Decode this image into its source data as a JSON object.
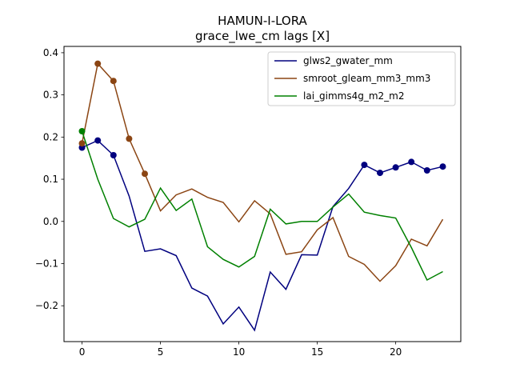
{
  "chart_data": {
    "type": "line",
    "title": "HAMUN-I-LORA",
    "subtitle": "grace_lwe_cm lags [X]",
    "xlabel": "",
    "ylabel": "",
    "xlim": [
      -1.15,
      24.15
    ],
    "ylim": [
      -0.285,
      0.415
    ],
    "xticks": [
      0,
      5,
      10,
      15,
      20
    ],
    "yticks": [
      -0.2,
      -0.1,
      0.0,
      0.1,
      0.2,
      0.3,
      0.4
    ],
    "ytick_labels": [
      "−0.2",
      "−0.1",
      "0.0",
      "0.1",
      "0.2",
      "0.3",
      "0.4"
    ],
    "legend_position": "top-right",
    "grid": false,
    "x": [
      0,
      1,
      2,
      3,
      4,
      5,
      6,
      7,
      8,
      9,
      10,
      11,
      12,
      13,
      14,
      15,
      16,
      17,
      18,
      19,
      20,
      21,
      22,
      23
    ],
    "series": [
      {
        "name": "glws2_gwater_mm",
        "color": "#00007f",
        "values": [
          0.175,
          0.192,
          0.157,
          0.06,
          -0.071,
          -0.065,
          -0.081,
          -0.158,
          -0.177,
          -0.243,
          -0.203,
          -0.258,
          -0.12,
          -0.161,
          -0.079,
          -0.08,
          0.035,
          0.078,
          0.134,
          0.115,
          0.128,
          0.141,
          0.121,
          0.13
        ],
        "markers": [
          0,
          1,
          2,
          18,
          19,
          20,
          21,
          22,
          23
        ]
      },
      {
        "name": "smroot_gleam_mm3_mm3",
        "color": "#8b4513",
        "values": [
          0.185,
          0.374,
          0.333,
          0.196,
          0.113,
          0.025,
          0.063,
          0.077,
          0.057,
          0.045,
          -0.001,
          0.049,
          0.018,
          -0.078,
          -0.072,
          -0.02,
          0.009,
          -0.083,
          -0.102,
          -0.142,
          -0.105,
          -0.042,
          -0.058,
          0.005
        ],
        "markers": [
          0,
          1,
          2,
          3,
          4
        ]
      },
      {
        "name": "lai_gimms4g_m2_m2",
        "color": "#008000",
        "values": [
          0.214,
          0.1,
          0.007,
          -0.013,
          0.005,
          0.079,
          0.026,
          0.053,
          -0.06,
          -0.09,
          -0.108,
          -0.083,
          0.029,
          -0.006,
          0.0,
          0.0,
          0.034,
          0.065,
          0.022,
          0.014,
          0.008,
          -0.062,
          -0.139,
          -0.119
        ],
        "markers": [
          0
        ]
      }
    ]
  }
}
